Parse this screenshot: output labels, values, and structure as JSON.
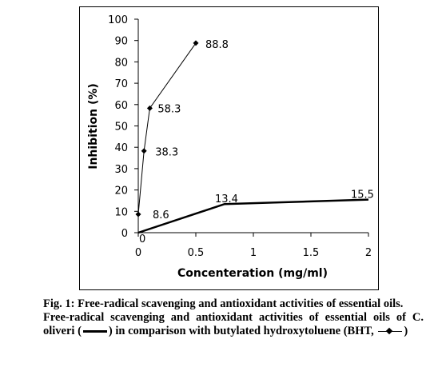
{
  "chart_data": {
    "type": "line",
    "xlabel": "Concenteration (mg/ml)",
    "ylabel": "Inhibition (%)",
    "xlim": [
      0,
      2
    ],
    "ylim": [
      0,
      100
    ],
    "xticks": [
      "0",
      "0.5",
      "1",
      "1.5",
      "2"
    ],
    "yticks": [
      "0",
      "10",
      "20",
      "30",
      "40",
      "50",
      "60",
      "70",
      "80",
      "90",
      "100"
    ],
    "grid": false,
    "series": [
      {
        "marker": "none",
        "color": "#000000",
        "x": [
          0,
          0.75,
          2
        ],
        "y": [
          0,
          13.4,
          15.5
        ],
        "labels": [
          "0",
          "13.4",
          "15.5"
        ]
      },
      {
        "marker": "diamond",
        "color": "#000000",
        "x": [
          0,
          0.05,
          0.1,
          0.5
        ],
        "y": [
          8.6,
          38.3,
          58.3,
          88.8
        ],
        "labels": [
          "8.6",
          "38.3",
          "58.3",
          "88.8"
        ]
      }
    ]
  },
  "caption": {
    "line1": "Fig. 1: Free-radical scavenging and antioxidant activities of essential oils.",
    "line2_start": "Free-radical scavenging and antioxidant activities of essential oils of C. oliveri (",
    "line2_mid": ") in comparison with butylated hydroxytoluene (BHT,",
    "line2_end": ")"
  }
}
